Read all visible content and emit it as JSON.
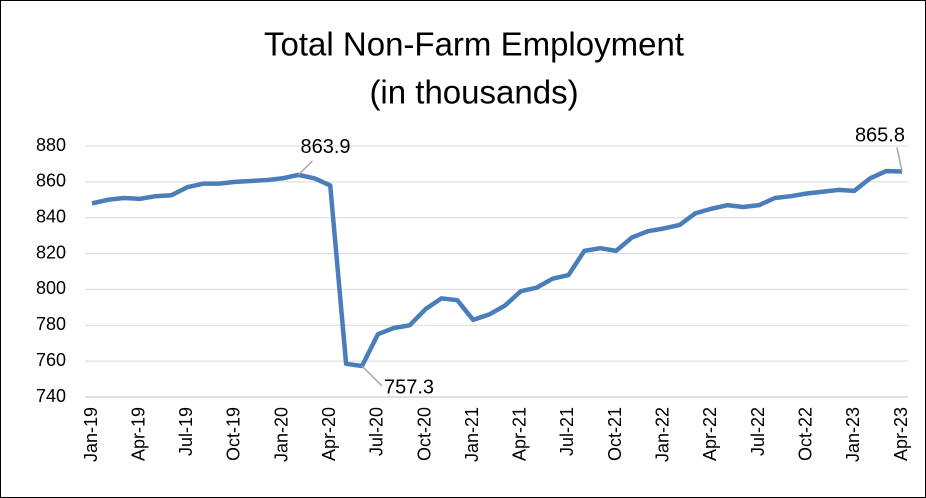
{
  "chart_data": {
    "type": "line",
    "title": "Total Non-Farm Employment",
    "subtitle": "(in thousands)",
    "categories": [
      "Jan-19",
      null,
      null,
      "Apr-19",
      null,
      null,
      "Jul-19",
      null,
      null,
      "Oct-19",
      null,
      null,
      "Jan-20",
      null,
      null,
      "Apr-20",
      null,
      null,
      "Jul-20",
      null,
      null,
      "Oct-20",
      null,
      null,
      "Jan-21",
      null,
      null,
      "Apr-21",
      null,
      null,
      "Jul-21",
      null,
      null,
      "Oct-21",
      null,
      null,
      "Jan-22",
      null,
      null,
      "Apr-22",
      null,
      null,
      "Jul-22",
      null,
      null,
      "Oct-22",
      null,
      null,
      "Jan-23",
      null,
      null,
      "Apr-23"
    ],
    "series": [
      {
        "name": "Total Non-Farm Employment",
        "color": "#4a7ebb",
        "values": [
          848,
          850,
          851,
          850.5,
          852,
          852.5,
          857,
          859,
          859,
          860,
          860.5,
          861,
          862,
          863.9,
          862,
          858,
          758.5,
          757.3,
          775,
          778.5,
          780,
          789,
          795,
          794,
          783,
          786,
          791,
          799,
          801,
          806,
          808,
          821.5,
          823,
          821.5,
          829,
          832.5,
          834,
          836,
          842.5,
          845,
          847,
          846,
          847,
          851,
          852,
          853.5,
          854.5,
          855.5,
          855,
          862,
          866,
          865.8
        ],
        "value_labels": [
          null,
          null,
          null,
          null,
          null,
          null,
          null,
          null,
          null,
          null,
          null,
          null,
          null,
          "863.9",
          null,
          null,
          null,
          "757.3",
          null,
          null,
          null,
          null,
          null,
          null,
          null,
          null,
          null,
          null,
          null,
          null,
          null,
          null,
          null,
          null,
          null,
          null,
          null,
          null,
          null,
          null,
          null,
          null,
          null,
          null,
          null,
          null,
          null,
          null,
          null,
          null,
          null,
          "865.8"
        ]
      }
    ],
    "ylim": [
      740,
      880
    ],
    "yticks": [
      740,
      760,
      780,
      800,
      820,
      840,
      860,
      880
    ],
    "grid": true
  }
}
